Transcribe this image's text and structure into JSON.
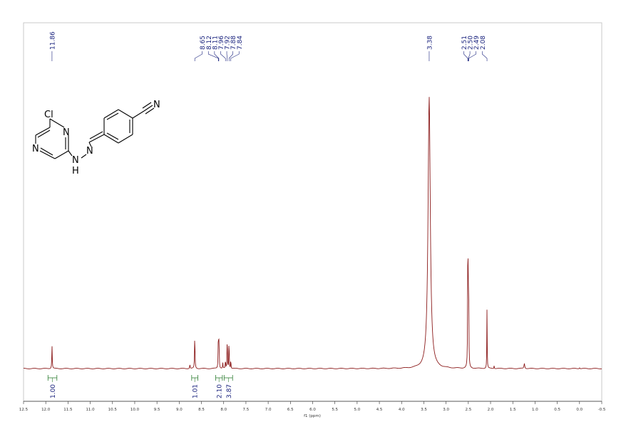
{
  "chart_data": {
    "type": "line",
    "title": "",
    "xlabel": "f1 (ppm)",
    "ylabel": "",
    "x_reversed": true,
    "xlim": [
      12.5,
      -0.5
    ],
    "x_ticks": [
      "12.5",
      "12.0",
      "11.5",
      "11.0",
      "10.5",
      "10.0",
      "9.5",
      "9.0",
      "8.5",
      "8.0",
      "7.5",
      "7.0",
      "6.5",
      "6.0",
      "5.5",
      "5.0",
      "4.5",
      "4.0",
      "3.5",
      "3.0",
      "2.5",
      "2.0",
      "1.5",
      "1.0",
      "0.5",
      "0.0",
      "-0.5"
    ],
    "peak_labels": [
      {
        "text": "11.86",
        "ppm": 11.86
      },
      {
        "text": "8.65",
        "ppm": 8.65
      },
      {
        "text": "8.12",
        "ppm": 8.12
      },
      {
        "text": "8.11",
        "ppm": 8.11
      },
      {
        "text": "7.96",
        "ppm": 7.96
      },
      {
        "text": "7.92",
        "ppm": 7.92
      },
      {
        "text": "7.88",
        "ppm": 7.88
      },
      {
        "text": "7.84",
        "ppm": 7.84
      },
      {
        "text": "3.38",
        "ppm": 3.38
      },
      {
        "text": "2.51",
        "ppm": 2.51
      },
      {
        "text": "2.50",
        "ppm": 2.5
      },
      {
        "text": "2.49",
        "ppm": 2.49
      },
      {
        "text": "2.08",
        "ppm": 2.08
      }
    ],
    "integrals": [
      {
        "text": "1.00",
        "from": 11.95,
        "to": 11.75
      },
      {
        "text": "1.01",
        "from": 8.72,
        "to": 8.58
      },
      {
        "text": "2.10",
        "from": 8.18,
        "to": 8.03
      },
      {
        "text": "3.87",
        "from": 7.99,
        "to": 7.8
      }
    ],
    "peaks": [
      {
        "ppm": 11.86,
        "height": 0.063,
        "width": 0.012
      },
      {
        "ppm": 8.76,
        "height": 0.012,
        "width": 0.012
      },
      {
        "ppm": 8.65,
        "height": 0.092,
        "width": 0.012
      },
      {
        "ppm": 8.12,
        "height": 0.106,
        "width": 0.01
      },
      {
        "ppm": 8.105,
        "height": 0.086,
        "width": 0.01
      },
      {
        "ppm": 8.02,
        "height": 0.015,
        "width": 0.01
      },
      {
        "ppm": 7.96,
        "height": 0.028,
        "width": 0.008
      },
      {
        "ppm": 7.92,
        "height": 0.103,
        "width": 0.009
      },
      {
        "ppm": 7.88,
        "height": 0.096,
        "width": 0.009
      },
      {
        "ppm": 7.84,
        "height": 0.03,
        "width": 0.008
      },
      {
        "ppm": 3.38,
        "height": 0.735,
        "width": 0.06
      },
      {
        "ppm": 2.51,
        "height": 0.38,
        "width": 0.01
      },
      {
        "ppm": 2.5,
        "height": 0.16,
        "width": 0.01
      },
      {
        "ppm": 2.49,
        "height": 0.13,
        "width": 0.01
      },
      {
        "ppm": 2.08,
        "height": 0.163,
        "width": 0.009
      },
      {
        "ppm": 1.92,
        "height": 0.008,
        "width": 0.01
      },
      {
        "ppm": 1.24,
        "height": 0.014,
        "width": 0.02
      },
      {
        "ppm": 0.0,
        "height": 0.003,
        "width": 0.015
      }
    ]
  },
  "structure": {
    "atoms": {
      "cl": "Cl",
      "n_ring_top": "N",
      "n_ring_bottom": "N",
      "n_amine": "N",
      "h_amine": "H",
      "n_imine": "N",
      "n_nitrile": "N"
    }
  },
  "colors": {
    "spectrum": "#8b1a1a",
    "peak_label": "#1a237e",
    "integral": "#2e7d32",
    "axis": "#333333",
    "frame": "#bdbdbd"
  }
}
